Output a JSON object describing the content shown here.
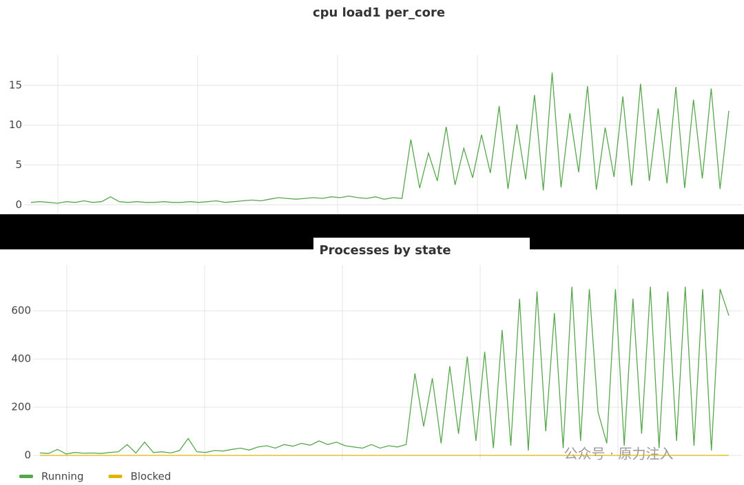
{
  "chart_data": [
    {
      "type": "line",
      "title": "cpu load1 per_core",
      "color": "#56a64b",
      "grid": true,
      "ylim": [
        -1.1,
        18.8
      ],
      "yticks": [
        0,
        5,
        10,
        15
      ],
      "values": [
        0.3,
        0.4,
        0.3,
        0.2,
        0.4,
        0.3,
        0.5,
        0.3,
        0.4,
        1.0,
        0.4,
        0.3,
        0.4,
        0.3,
        0.3,
        0.4,
        0.3,
        0.3,
        0.4,
        0.3,
        0.4,
        0.5,
        0.3,
        0.4,
        0.5,
        0.6,
        0.5,
        0.7,
        0.9,
        0.8,
        0.7,
        0.8,
        0.9,
        0.8,
        1.0,
        0.9,
        1.1,
        0.9,
        0.8,
        1.0,
        0.7,
        0.9,
        0.8,
        8.2,
        2.1,
        6.5,
        3.0,
        9.8,
        2.5,
        7.1,
        3.4,
        8.8,
        4.0,
        12.4,
        2.0,
        10.1,
        3.2,
        13.8,
        1.8,
        16.6,
        2.2,
        11.5,
        4.1,
        14.9,
        1.9,
        9.7,
        3.5,
        13.6,
        2.4,
        15.2,
        3.0,
        12.1,
        2.7,
        14.8,
        2.1,
        13.2,
        3.3,
        14.6,
        2.0,
        11.8
      ]
    },
    {
      "type": "line",
      "title": "Processes by state",
      "grid": true,
      "ylim": [
        -20,
        789
      ],
      "yticks": [
        0,
        200,
        400,
        600
      ],
      "annotation": "公众号 · 原力注入",
      "series": [
        {
          "name": "Running",
          "color": "#56a64b",
          "values": [
            10,
            8,
            25,
            6,
            12,
            9,
            10,
            8,
            12,
            15,
            45,
            10,
            55,
            12,
            15,
            10,
            20,
            70,
            15,
            12,
            20,
            18,
            25,
            30,
            22,
            35,
            40,
            30,
            45,
            38,
            50,
            42,
            60,
            45,
            55,
            40,
            35,
            30,
            45,
            30,
            40,
            35,
            45,
            340,
            120,
            320,
            50,
            370,
            90,
            410,
            60,
            430,
            30,
            520,
            40,
            650,
            20,
            680,
            100,
            590,
            30,
            700,
            60,
            690,
            180,
            50,
            690,
            40,
            650,
            90,
            700,
            30,
            680,
            60,
            700,
            40,
            690,
            20,
            690,
            580
          ]
        },
        {
          "name": "Blocked",
          "color": "#e0b400",
          "values": [
            0,
            0,
            0,
            0,
            0,
            0,
            0,
            0,
            0,
            0,
            0,
            0,
            0,
            0,
            0,
            0,
            0,
            0,
            0,
            0,
            0,
            0,
            0,
            0,
            0,
            0,
            0,
            0,
            0,
            0,
            0,
            0,
            0,
            0,
            0,
            0,
            0,
            0,
            0,
            0,
            0,
            0,
            0,
            0,
            0,
            0,
            0,
            0,
            0,
            0,
            0,
            0,
            0,
            0,
            0,
            0,
            0,
            0,
            0,
            0,
            0,
            0,
            0,
            0,
            0,
            0,
            0,
            0,
            0,
            0,
            0,
            0,
            0,
            0,
            0,
            0,
            0,
            0,
            0,
            0
          ]
        }
      ]
    }
  ]
}
